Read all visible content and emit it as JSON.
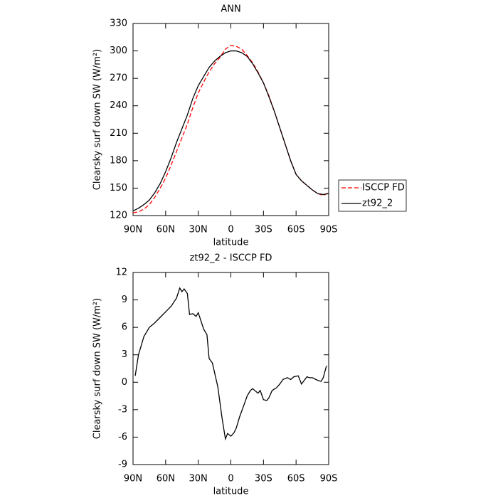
{
  "chart_data": [
    {
      "type": "line",
      "title": "ANN",
      "xlabel": "latitude",
      "ylabel": "Clearsky surf down SW (W/m²)",
      "x": [
        90,
        85,
        80,
        75,
        70,
        65,
        60,
        55,
        50,
        45,
        40,
        35,
        30,
        25,
        20,
        15,
        10,
        5,
        0,
        -5,
        -10,
        -15,
        -20,
        -25,
        -30,
        -35,
        -40,
        -45,
        -50,
        -55,
        -60,
        -65,
        -70,
        -75,
        -80,
        -85,
        -90
      ],
      "series": [
        {
          "name": "ISCCP FD",
          "color": "#ff0000",
          "style": "dashed",
          "values": [
            123,
            124,
            127,
            132,
            140,
            150,
            161,
            175,
            190,
            205,
            220,
            238,
            254,
            266,
            277,
            286,
            293,
            302,
            306,
            305,
            302,
            295,
            287,
            277,
            265,
            251,
            234,
            216,
            198,
            180,
            165,
            158,
            153,
            148,
            144,
            142,
            145
          ]
        },
        {
          "name": "zt92_2",
          "color": "#000000",
          "style": "solid",
          "values": [
            125,
            128,
            132,
            137,
            145,
            155,
            168,
            183,
            200,
            215,
            230,
            248,
            262,
            272,
            282,
            289,
            294,
            298,
            300,
            300,
            298,
            294,
            286,
            276,
            265,
            250,
            234,
            216,
            198,
            180,
            165,
            158,
            153,
            148,
            144,
            143,
            144
          ]
        }
      ],
      "xlim": [
        90,
        -90
      ],
      "xticks": [
        {
          "value": 90,
          "label": "90N"
        },
        {
          "value": 60,
          "label": "60N"
        },
        {
          "value": 30,
          "label": "30N"
        },
        0,
        {
          "value": -30,
          "label": "30S"
        },
        {
          "value": -60,
          "label": "60S"
        },
        {
          "value": -90,
          "label": "90S"
        }
      ],
      "ylim": [
        120,
        330
      ],
      "yticks": [
        120,
        150,
        180,
        210,
        240,
        270,
        300,
        330
      ],
      "legend": "right"
    },
    {
      "type": "line",
      "title": "zt92_2 - ISCCP FD",
      "xlabel": "latitude",
      "ylabel": "Clearsky surf down SW (W/m²)",
      "x": [
        88,
        85,
        80,
        75,
        70,
        65,
        60,
        55,
        50,
        47,
        45,
        43,
        40,
        38,
        35,
        32,
        30,
        25,
        22,
        20,
        17,
        12,
        8,
        5,
        3,
        0,
        -3,
        -5,
        -8,
        -12,
        -15,
        -18,
        -20,
        -25,
        -27,
        -30,
        -33,
        -35,
        -38,
        -42,
        -45,
        -48,
        -52,
        -55,
        -58,
        -62,
        -65,
        -70,
        -72,
        -75,
        -80,
        -83,
        -85,
        -88
      ],
      "values": [
        0.7,
        3,
        5,
        6,
        6.5,
        7.1,
        7.7,
        8.3,
        9.2,
        10.3,
        9.9,
        10.2,
        9.7,
        7.4,
        7.5,
        7.2,
        7.6,
        5.8,
        5.2,
        2.6,
        2.1,
        -0.5,
        -4,
        -6.2,
        -5.6,
        -5.9,
        -5.5,
        -5,
        -3.8,
        -2.5,
        -1.5,
        -0.9,
        -0.7,
        -1.2,
        -0.9,
        -1.9,
        -2,
        -1.7,
        -0.9,
        -0.6,
        -0.2,
        0.3,
        0.5,
        0.3,
        0.6,
        0.7,
        -0.2,
        0.6,
        0.5,
        0.5,
        0.2,
        0.1,
        0.5,
        1.8
      ],
      "color": "#000000",
      "xlim": [
        90,
        -90
      ],
      "xticks": [
        {
          "value": 90,
          "label": "90N"
        },
        {
          "value": 60,
          "label": "60N"
        },
        {
          "value": 30,
          "label": "30N"
        },
        0,
        {
          "value": -30,
          "label": "30S"
        },
        {
          "value": -60,
          "label": "60S"
        },
        {
          "value": -90,
          "label": "90S"
        }
      ],
      "ylim": [
        -9,
        12
      ],
      "yticks": [
        -9,
        -6,
        -3,
        0,
        3,
        6,
        9,
        12
      ]
    }
  ]
}
